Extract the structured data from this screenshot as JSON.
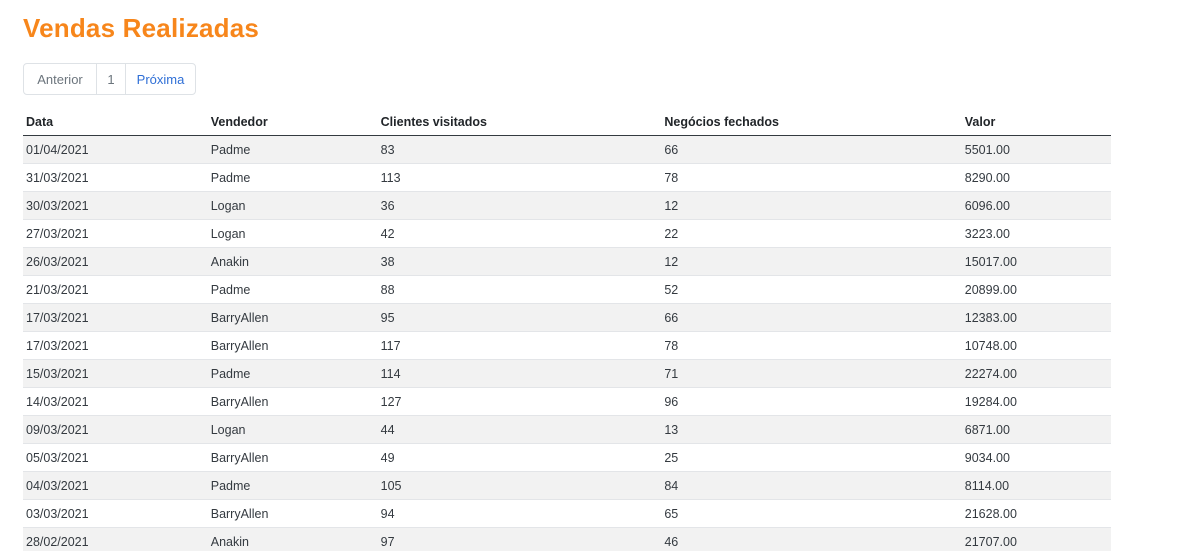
{
  "page": {
    "title": "Vendas Realizadas"
  },
  "pagination": {
    "previous": "Anterior",
    "current": "1",
    "next": "Próxima"
  },
  "table": {
    "headers": [
      "Data",
      "Vendedor",
      "Clientes visitados",
      "Negócios fechados",
      "Valor"
    ],
    "rows": [
      [
        "01/04/2021",
        "Padme",
        "83",
        "66",
        "5501.00"
      ],
      [
        "31/03/2021",
        "Padme",
        "113",
        "78",
        "8290.00"
      ],
      [
        "30/03/2021",
        "Logan",
        "36",
        "12",
        "6096.00"
      ],
      [
        "27/03/2021",
        "Logan",
        "42",
        "22",
        "3223.00"
      ],
      [
        "26/03/2021",
        "Anakin",
        "38",
        "12",
        "15017.00"
      ],
      [
        "21/03/2021",
        "Padme",
        "88",
        "52",
        "20899.00"
      ],
      [
        "17/03/2021",
        "BarryAllen",
        "95",
        "66",
        "12383.00"
      ],
      [
        "17/03/2021",
        "BarryAllen",
        "117",
        "78",
        "10748.00"
      ],
      [
        "15/03/2021",
        "Padme",
        "114",
        "71",
        "22274.00"
      ],
      [
        "14/03/2021",
        "BarryAllen",
        "127",
        "96",
        "19284.00"
      ],
      [
        "09/03/2021",
        "Logan",
        "44",
        "13",
        "6871.00"
      ],
      [
        "05/03/2021",
        "BarryAllen",
        "49",
        "25",
        "9034.00"
      ],
      [
        "04/03/2021",
        "Padme",
        "105",
        "84",
        "8114.00"
      ],
      [
        "03/03/2021",
        "BarryAllen",
        "94",
        "65",
        "21628.00"
      ],
      [
        "28/02/2021",
        "Anakin",
        "97",
        "46",
        "21707.00"
      ]
    ]
  },
  "colors": {
    "title": "#f7861b",
    "link": "#2f6fd6",
    "stripe": "#f2f2f2"
  }
}
